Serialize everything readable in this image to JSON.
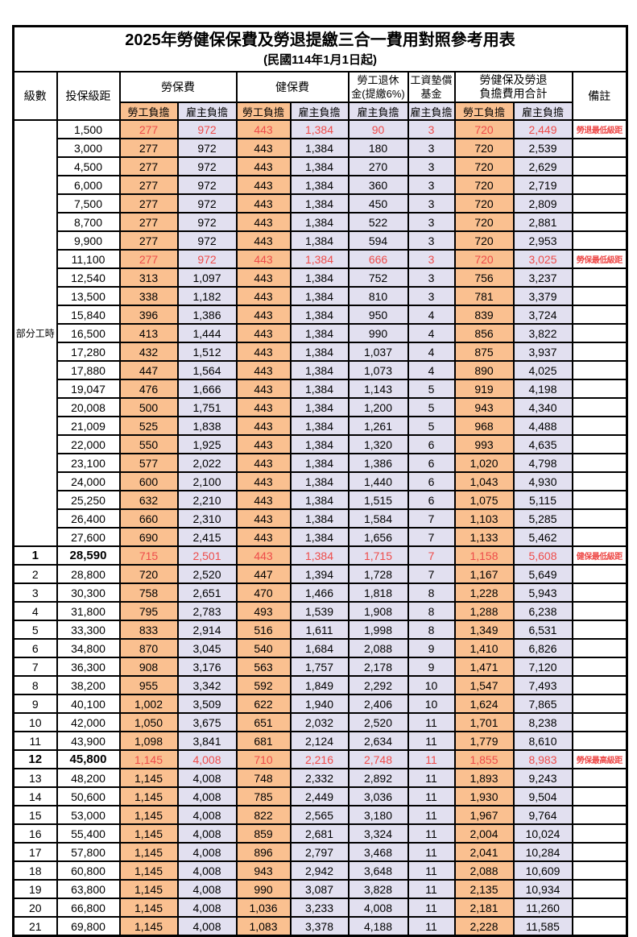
{
  "title": "2025年勞健保保費及勞退提繳三合一費用對照參考用表",
  "subtitle": "(民國114年1月1日起)",
  "header": {
    "level": "級數",
    "bracket": "投保級距",
    "labor_insurance": "勞保費",
    "health_insurance": "健保費",
    "pension_l1": "勞工退休",
    "pension_l2": "金(提繳6%)",
    "wage_fund_l1": "工資墊償",
    "wage_fund_l2": "基金",
    "total_l1": "勞健保及勞退",
    "total_l2": "負擔費用合計",
    "remark": "備註",
    "employee_burden": "勞工負擔",
    "employer_burden": "雇主負擔"
  },
  "part_time": {
    "label": "部分工時",
    "rowspan": 23
  },
  "colors": {
    "employee_bg": "#FAC090",
    "employer_bg": "#E2E0F0",
    "highlight_text": "#EE4C4A",
    "border": "#000000"
  },
  "rows": [
    {
      "bracket": "1,500",
      "cells": [
        "277",
        "972",
        "443",
        "1,384",
        "90",
        "3",
        "720",
        "2,449"
      ],
      "remark": "勞退最低級距",
      "hl": true
    },
    {
      "bracket": "3,000",
      "cells": [
        "277",
        "972",
        "443",
        "1,384",
        "180",
        "3",
        "720",
        "2,539"
      ],
      "remark": ""
    },
    {
      "bracket": "4,500",
      "cells": [
        "277",
        "972",
        "443",
        "1,384",
        "270",
        "3",
        "720",
        "2,629"
      ],
      "remark": ""
    },
    {
      "bracket": "6,000",
      "cells": [
        "277",
        "972",
        "443",
        "1,384",
        "360",
        "3",
        "720",
        "2,719"
      ],
      "remark": ""
    },
    {
      "bracket": "7,500",
      "cells": [
        "277",
        "972",
        "443",
        "1,384",
        "450",
        "3",
        "720",
        "2,809"
      ],
      "remark": ""
    },
    {
      "bracket": "8,700",
      "cells": [
        "277",
        "972",
        "443",
        "1,384",
        "522",
        "3",
        "720",
        "2,881"
      ],
      "remark": ""
    },
    {
      "bracket": "9,900",
      "cells": [
        "277",
        "972",
        "443",
        "1,384",
        "594",
        "3",
        "720",
        "2,953"
      ],
      "remark": ""
    },
    {
      "bracket": "11,100",
      "cells": [
        "277",
        "972",
        "443",
        "1,384",
        "666",
        "3",
        "720",
        "3,025"
      ],
      "remark": "勞保最低級距",
      "hl": true
    },
    {
      "bracket": "12,540",
      "cells": [
        "313",
        "1,097",
        "443",
        "1,384",
        "752",
        "3",
        "756",
        "3,237"
      ],
      "remark": ""
    },
    {
      "bracket": "13,500",
      "cells": [
        "338",
        "1,182",
        "443",
        "1,384",
        "810",
        "3",
        "781",
        "3,379"
      ],
      "remark": ""
    },
    {
      "bracket": "15,840",
      "cells": [
        "396",
        "1,386",
        "443",
        "1,384",
        "950",
        "4",
        "839",
        "3,724"
      ],
      "remark": ""
    },
    {
      "bracket": "16,500",
      "cells": [
        "413",
        "1,444",
        "443",
        "1,384",
        "990",
        "4",
        "856",
        "3,822"
      ],
      "remark": ""
    },
    {
      "bracket": "17,280",
      "cells": [
        "432",
        "1,512",
        "443",
        "1,384",
        "1,037",
        "4",
        "875",
        "3,937"
      ],
      "remark": ""
    },
    {
      "bracket": "17,880",
      "cells": [
        "447",
        "1,564",
        "443",
        "1,384",
        "1,073",
        "4",
        "890",
        "4,025"
      ],
      "remark": ""
    },
    {
      "bracket": "19,047",
      "cells": [
        "476",
        "1,666",
        "443",
        "1,384",
        "1,143",
        "5",
        "919",
        "4,198"
      ],
      "remark": ""
    },
    {
      "bracket": "20,008",
      "cells": [
        "500",
        "1,751",
        "443",
        "1,384",
        "1,200",
        "5",
        "943",
        "4,340"
      ],
      "remark": ""
    },
    {
      "bracket": "21,009",
      "cells": [
        "525",
        "1,838",
        "443",
        "1,384",
        "1,261",
        "5",
        "968",
        "4,488"
      ],
      "remark": ""
    },
    {
      "bracket": "22,000",
      "cells": [
        "550",
        "1,925",
        "443",
        "1,384",
        "1,320",
        "6",
        "993",
        "4,635"
      ],
      "remark": ""
    },
    {
      "bracket": "23,100",
      "cells": [
        "577",
        "2,022",
        "443",
        "1,384",
        "1,386",
        "6",
        "1,020",
        "4,798"
      ],
      "remark": ""
    },
    {
      "bracket": "24,000",
      "cells": [
        "600",
        "2,100",
        "443",
        "1,384",
        "1,440",
        "6",
        "1,043",
        "4,930"
      ],
      "remark": ""
    },
    {
      "bracket": "25,250",
      "cells": [
        "632",
        "2,210",
        "443",
        "1,384",
        "1,515",
        "6",
        "1,075",
        "5,115"
      ],
      "remark": ""
    },
    {
      "bracket": "26,400",
      "cells": [
        "660",
        "2,310",
        "443",
        "1,384",
        "1,584",
        "7",
        "1,103",
        "5,285"
      ],
      "remark": ""
    },
    {
      "bracket": "27,600",
      "cells": [
        "690",
        "2,415",
        "443",
        "1,384",
        "1,656",
        "7",
        "1,133",
        "5,462"
      ],
      "remark": ""
    },
    {
      "level": "1",
      "bracket": "28,590",
      "cells": [
        "715",
        "2,501",
        "443",
        "1,384",
        "1,715",
        "7",
        "1,158",
        "5,608"
      ],
      "remark": "健保最低級距",
      "hl": true,
      "bold": true
    },
    {
      "level": "2",
      "bracket": "28,800",
      "cells": [
        "720",
        "2,520",
        "447",
        "1,394",
        "1,728",
        "7",
        "1,167",
        "5,649"
      ],
      "remark": ""
    },
    {
      "level": "3",
      "bracket": "30,300",
      "cells": [
        "758",
        "2,651",
        "470",
        "1,466",
        "1,818",
        "8",
        "1,228",
        "5,943"
      ],
      "remark": ""
    },
    {
      "level": "4",
      "bracket": "31,800",
      "cells": [
        "795",
        "2,783",
        "493",
        "1,539",
        "1,908",
        "8",
        "1,288",
        "6,238"
      ],
      "remark": ""
    },
    {
      "level": "5",
      "bracket": "33,300",
      "cells": [
        "833",
        "2,914",
        "516",
        "1,611",
        "1,998",
        "8",
        "1,349",
        "6,531"
      ],
      "remark": ""
    },
    {
      "level": "6",
      "bracket": "34,800",
      "cells": [
        "870",
        "3,045",
        "540",
        "1,684",
        "2,088",
        "9",
        "1,410",
        "6,826"
      ],
      "remark": ""
    },
    {
      "level": "7",
      "bracket": "36,300",
      "cells": [
        "908",
        "3,176",
        "563",
        "1,757",
        "2,178",
        "9",
        "1,471",
        "7,120"
      ],
      "remark": ""
    },
    {
      "level": "8",
      "bracket": "38,200",
      "cells": [
        "955",
        "3,342",
        "592",
        "1,849",
        "2,292",
        "10",
        "1,547",
        "7,493"
      ],
      "remark": ""
    },
    {
      "level": "9",
      "bracket": "40,100",
      "cells": [
        "1,002",
        "3,509",
        "622",
        "1,940",
        "2,406",
        "10",
        "1,624",
        "7,865"
      ],
      "remark": ""
    },
    {
      "level": "10",
      "bracket": "42,000",
      "cells": [
        "1,050",
        "3,675",
        "651",
        "2,032",
        "2,520",
        "11",
        "1,701",
        "8,238"
      ],
      "remark": ""
    },
    {
      "level": "11",
      "bracket": "43,900",
      "cells": [
        "1,098",
        "3,841",
        "681",
        "2,124",
        "2,634",
        "11",
        "1,779",
        "8,610"
      ],
      "remark": ""
    },
    {
      "level": "12",
      "bracket": "45,800",
      "cells": [
        "1,145",
        "4,008",
        "710",
        "2,216",
        "2,748",
        "11",
        "1,855",
        "8,983"
      ],
      "remark": "勞保最高級距",
      "hl": true,
      "bold": true
    },
    {
      "level": "13",
      "bracket": "48,200",
      "cells": [
        "1,145",
        "4,008",
        "748",
        "2,332",
        "2,892",
        "11",
        "1,893",
        "9,243"
      ],
      "remark": ""
    },
    {
      "level": "14",
      "bracket": "50,600",
      "cells": [
        "1,145",
        "4,008",
        "785",
        "2,449",
        "3,036",
        "11",
        "1,930",
        "9,504"
      ],
      "remark": ""
    },
    {
      "level": "15",
      "bracket": "53,000",
      "cells": [
        "1,145",
        "4,008",
        "822",
        "2,565",
        "3,180",
        "11",
        "1,967",
        "9,764"
      ],
      "remark": ""
    },
    {
      "level": "16",
      "bracket": "55,400",
      "cells": [
        "1,145",
        "4,008",
        "859",
        "2,681",
        "3,324",
        "11",
        "2,004",
        "10,024"
      ],
      "remark": ""
    },
    {
      "level": "17",
      "bracket": "57,800",
      "cells": [
        "1,145",
        "4,008",
        "896",
        "2,797",
        "3,468",
        "11",
        "2,041",
        "10,284"
      ],
      "remark": ""
    },
    {
      "level": "18",
      "bracket": "60,800",
      "cells": [
        "1,145",
        "4,008",
        "943",
        "2,942",
        "3,648",
        "11",
        "2,088",
        "10,609"
      ],
      "remark": ""
    },
    {
      "level": "19",
      "bracket": "63,800",
      "cells": [
        "1,145",
        "4,008",
        "990",
        "3,087",
        "3,828",
        "11",
        "2,135",
        "10,934"
      ],
      "remark": ""
    },
    {
      "level": "20",
      "bracket": "66,800",
      "cells": [
        "1,145",
        "4,008",
        "1,036",
        "3,233",
        "4,008",
        "11",
        "2,181",
        "11,260"
      ],
      "remark": ""
    },
    {
      "level": "21",
      "bracket": "69,800",
      "cells": [
        "1,145",
        "4,008",
        "1,083",
        "3,378",
        "4,188",
        "11",
        "2,228",
        "11,585"
      ],
      "remark": ""
    }
  ]
}
